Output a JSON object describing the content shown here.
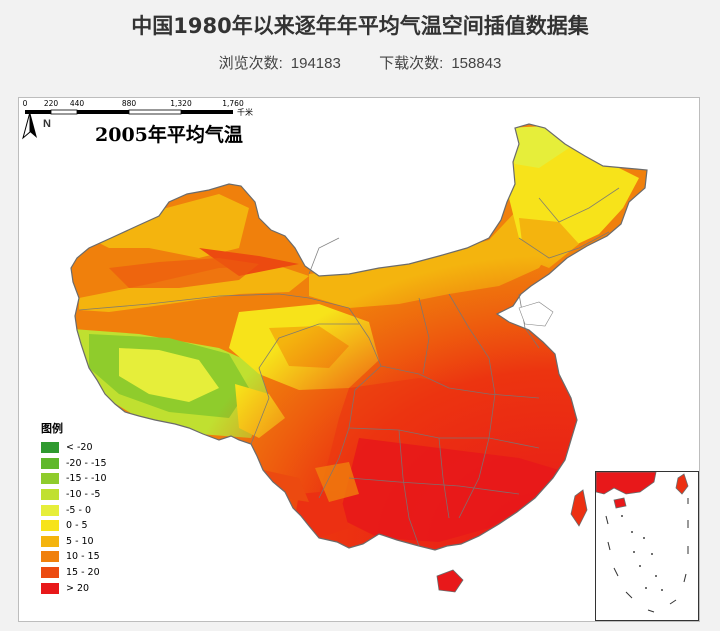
{
  "header": {
    "title": "中国1980年以来逐年年平均气温空间插值数据集",
    "views_label": "浏览次数:",
    "views_value": "194183",
    "downloads_label": "下载次数:",
    "downloads_value": "158843"
  },
  "map": {
    "title": "2005年平均气温",
    "north_label": "N",
    "legend": {
      "title": "图例",
      "items": [
        {
          "label": "< -20",
          "color": "#2f9a2f"
        },
        {
          "label": "-20 - -15",
          "color": "#5fb82a"
        },
        {
          "label": "-15 - -10",
          "color": "#8fcc2c"
        },
        {
          "label": "-10 - -5",
          "color": "#c0e030"
        },
        {
          "label": "-5 - 0",
          "color": "#e6ee3a"
        },
        {
          "label": "0 - 5",
          "color": "#f7e31a"
        },
        {
          "label": "5 - 10",
          "color": "#f4b40e"
        },
        {
          "label": "10 - 15",
          "color": "#f0800c"
        },
        {
          "label": "15 - 20",
          "color": "#ec4a10"
        },
        {
          "label": "> 20",
          "color": "#e8181a"
        }
      ]
    },
    "scale": {
      "ticks": [
        "0",
        "220",
        "440",
        "880",
        "1,320",
        "1,760"
      ],
      "unit": "千米"
    }
  }
}
